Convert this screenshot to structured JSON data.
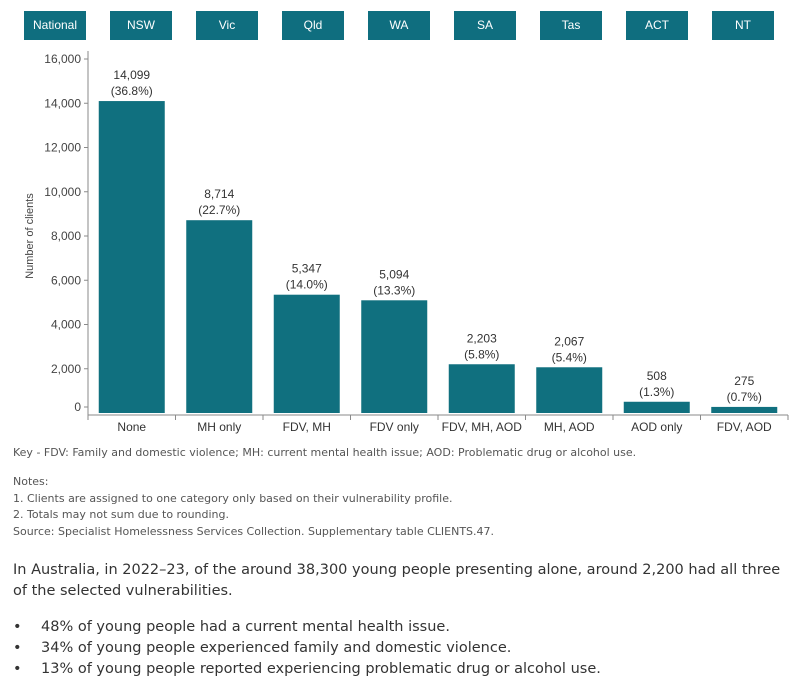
{
  "tabs": [
    "National",
    "NSW",
    "Vic",
    "Qld",
    "WA",
    "SA",
    "Tas",
    "ACT",
    "NT"
  ],
  "colors": {
    "tab_bg": "#0f6e7f",
    "bar": "#10707f",
    "axis": "#8a8a8a"
  },
  "chart_data": {
    "type": "bar",
    "title": "",
    "xlabel": "",
    "ylabel": "Number of clients",
    "ylim": [
      0,
      16000
    ],
    "yticks": [
      0,
      2000,
      4000,
      6000,
      8000,
      10000,
      12000,
      14000,
      16000
    ],
    "ytick_labels": [
      "0",
      "2,000",
      "4,000",
      "6,000",
      "8,000",
      "10,000",
      "12,000",
      "14,000",
      "16,000"
    ],
    "categories": [
      "None",
      "MH only",
      "FDV, MH",
      "FDV only",
      "FDV, MH, AOD",
      "MH, AOD",
      "AOD only",
      "FDV, AOD"
    ],
    "values": [
      14099,
      8714,
      5347,
      5094,
      2203,
      2067,
      508,
      275
    ],
    "value_labels": [
      "14,099",
      "8,714",
      "5,347",
      "5,094",
      "2,203",
      "2,067",
      "508",
      "275"
    ],
    "percent_labels": [
      "(36.8%)",
      "(22.7%)",
      "(14.0%)",
      "(13.3%)",
      "(5.8%)",
      "(5.4%)",
      "(1.3%)",
      "(0.7%)"
    ],
    "grid": false,
    "legend": "none"
  },
  "key": "Key - FDV: Family and domestic violence; MH: current mental health issue; AOD: Problematic drug or alcohol use.",
  "notes": {
    "heading": "Notes:",
    "items": [
      "1.  Clients are assigned to one category only based on their vulnerability profile.",
      "2.  Totals may not sum due to rounding."
    ],
    "source": "Source: Specialist Homelessness Services Collection. Supplementary table CLIENTS.47."
  },
  "summary": "In Australia, in 2022–23, of the around 38,300 young people presenting alone, around 2,200 had all three of the selected vulnerabilities.",
  "bullets": [
    "48% of young people had a current mental health issue.",
    "34% of young people experienced family and domestic violence.",
    "13% of young people reported experiencing problematic drug or alcohol use."
  ]
}
